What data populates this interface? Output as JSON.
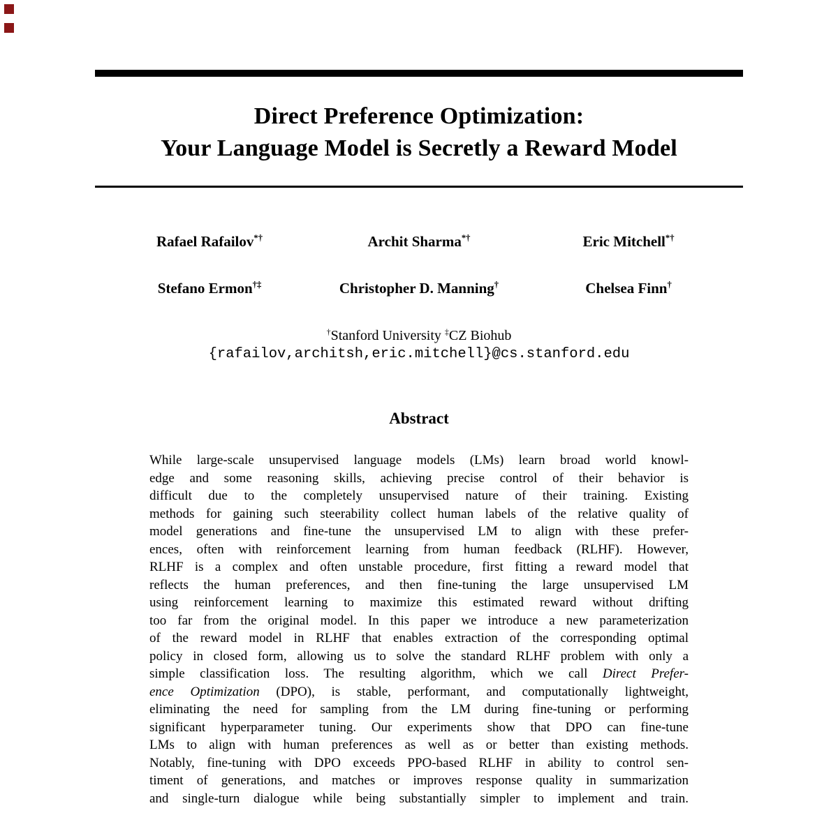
{
  "colors": {
    "background": "#ffffff",
    "text": "#000000",
    "rule": "#000000",
    "marker": "#8b1717"
  },
  "title": {
    "line1": "Direct Preference Optimization:",
    "line2": "Your Language Model is Secretly a Reward Model"
  },
  "authors": [
    {
      "name": "Rafael Rafailov",
      "sup": "*†"
    },
    {
      "name": "Archit Sharma",
      "sup": "*†"
    },
    {
      "name": "Eric Mitchell",
      "sup": "*†"
    },
    {
      "name": "Stefano Ermon",
      "sup": "†‡"
    },
    {
      "name": "Christopher D. Manning",
      "sup": "†"
    },
    {
      "name": "Chelsea Finn",
      "sup": "†"
    }
  ],
  "affiliation": {
    "sup1": "†",
    "org1": "Stanford University",
    "sup2": "‡",
    "org2": "CZ Biohub"
  },
  "contact_email": "{rafailov,architsh,eric.mitchell}@cs.stanford.edu",
  "abstract": {
    "heading": "Abstract",
    "lines": [
      [
        {
          "t": "While large-scale unsupervised language models (LMs) learn broad world knowl-"
        }
      ],
      [
        {
          "t": "edge and some reasoning skills, achieving precise control of their behavior is"
        }
      ],
      [
        {
          "t": "difficult due to the completely unsupervised nature of their training. Existing"
        }
      ],
      [
        {
          "t": "methods for gaining such steerability collect human labels of the relative quality of"
        }
      ],
      [
        {
          "t": "model generations and fine-tune the unsupervised LM to align with these prefer-"
        }
      ],
      [
        {
          "t": "ences, often with reinforcement learning from human feedback (RLHF). However,"
        }
      ],
      [
        {
          "t": "RLHF is a complex and often unstable procedure, first fitting a reward model that"
        }
      ],
      [
        {
          "t": "reflects the human preferences, and then fine-tuning the large unsupervised LM"
        }
      ],
      [
        {
          "t": "using reinforcement learning to maximize this estimated reward without drifting"
        }
      ],
      [
        {
          "t": "too far from the original model. In this paper we introduce a new parameterization"
        }
      ],
      [
        {
          "t": "of the reward model in RLHF that enables extraction of the corresponding optimal"
        }
      ],
      [
        {
          "t": "policy in closed form, allowing us to solve the standard RLHF problem with only a"
        }
      ],
      [
        {
          "t": "simple classification loss. The resulting algorithm, which we call "
        },
        {
          "t": "Direct Prefer-",
          "i": true
        }
      ],
      [
        {
          "t": "ence Optimization",
          "i": true
        },
        {
          "t": " (DPO), is stable, performant, and computationally lightweight,"
        }
      ],
      [
        {
          "t": "eliminating the need for sampling from the LM during fine-tuning or performing"
        }
      ],
      [
        {
          "t": "significant hyperparameter tuning. Our experiments show that DPO can fine-tune"
        }
      ],
      [
        {
          "t": "LMs to align with human preferences as well as or better than existing methods."
        }
      ],
      [
        {
          "t": "Notably, fine-tuning with DPO exceeds PPO-based RLHF in ability to control sen-"
        }
      ],
      [
        {
          "t": "timent of generations, and matches or improves response quality in summarization"
        }
      ],
      [
        {
          "t": "and single-turn dialogue while being substantially simpler to implement and train."
        }
      ]
    ]
  }
}
